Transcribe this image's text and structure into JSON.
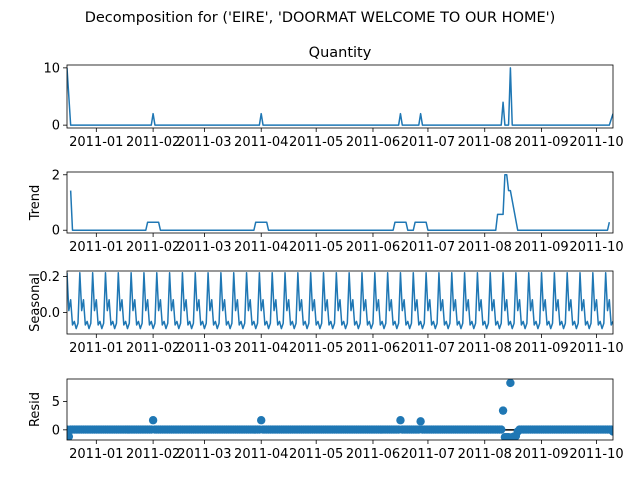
{
  "suptitle": "Decomposition for ('EIRE', 'DOORMAT WELCOME TO OUR HOME')",
  "x_tick_labels": [
    "2011-01",
    "2011-02",
    "2011-03",
    "2011-04",
    "2011-05",
    "2011-06",
    "2011-07",
    "2011-08",
    "2011-09",
    "2011-10"
  ],
  "line_color": "#1f77b4",
  "chart_data": [
    {
      "type": "line",
      "title": "Quantity",
      "ylabel": "",
      "xlim": [
        "2010-12-16",
        "2011-10-10"
      ],
      "ylim": [
        -0.5,
        10.5
      ],
      "yticks": [
        0,
        10
      ],
      "ytick_labels": [
        "0",
        "10"
      ],
      "series": [
        {
          "x": [
            "2010-12-16",
            "2010-12-18",
            "2011-01-31",
            "2011-02-01",
            "2011-02-02",
            "2011-03-31",
            "2011-04-01",
            "2011-04-02",
            "2011-06-15",
            "2011-06-16",
            "2011-06-17",
            "2011-06-26",
            "2011-06-27",
            "2011-06-28",
            "2011-08-10",
            "2011-08-11",
            "2011-08-12",
            "2011-08-14",
            "2011-08-15",
            "2011-08-16",
            "2011-10-08",
            "2011-10-10"
          ],
          "values": [
            10,
            0,
            0,
            2,
            0,
            0,
            2,
            0,
            0,
            2,
            0,
            0,
            2,
            0,
            0,
            4,
            0,
            0,
            10,
            0,
            0,
            2
          ]
        }
      ]
    },
    {
      "type": "line",
      "title": "",
      "ylabel": "Trend",
      "xlim": [
        "2010-12-16",
        "2011-10-10"
      ],
      "ylim": [
        -0.1,
        2.1
      ],
      "yticks": [
        0,
        2
      ],
      "ytick_labels": [
        "0",
        "2"
      ],
      "series": [
        {
          "x": [
            "2010-12-18",
            "2010-12-19",
            "2011-01-28",
            "2011-01-29",
            "2011-02-04",
            "2011-02-05",
            "2011-03-28",
            "2011-03-29",
            "2011-04-04",
            "2011-04-05",
            "2011-06-12",
            "2011-06-13",
            "2011-06-19",
            "2011-06-20",
            "2011-06-23",
            "2011-06-24",
            "2011-06-30",
            "2011-07-01",
            "2011-08-07",
            "2011-08-08",
            "2011-08-11",
            "2011-08-12",
            "2011-08-13",
            "2011-08-14",
            "2011-08-15",
            "2011-08-19",
            "2011-10-07",
            "2011-10-08"
          ],
          "values": [
            1.43,
            0,
            0,
            0.29,
            0.29,
            0,
            0,
            0.29,
            0.29,
            0,
            0,
            0.29,
            0.29,
            0,
            0,
            0.29,
            0.29,
            0,
            0,
            0.57,
            0.57,
            2.0,
            2.0,
            1.43,
            1.43,
            0,
            0,
            0.29
          ]
        }
      ]
    },
    {
      "type": "line",
      "title": "",
      "ylabel": "Seasonal",
      "xlim": [
        "2010-12-16",
        "2011-10-10"
      ],
      "ylim": [
        -0.12,
        0.23
      ],
      "yticks": [
        0.0,
        0.2
      ],
      "ytick_labels": [
        "0.0",
        "0.2"
      ],
      "period": 7,
      "start": "2010-12-16",
      "end": "2011-10-10",
      "pattern": [
        0.22,
        0.01,
        0.07,
        -0.07,
        -0.05,
        -0.09,
        -0.06
      ]
    },
    {
      "type": "scatter",
      "title": "",
      "ylabel": "Resid",
      "xlim": [
        "2010-12-16",
        "2011-10-10"
      ],
      "ylim": [
        -1.8,
        9.0
      ],
      "yticks": [
        0,
        5
      ],
      "ytick_labels": [
        "0",
        "5"
      ],
      "baseline": 0,
      "start": "2010-12-16",
      "end": "2011-10-10",
      "default_value": 0.05,
      "overrides": [
        {
          "x": "2010-12-17",
          "y": -1.2
        },
        {
          "x": "2011-02-01",
          "y": 1.7
        },
        {
          "x": "2011-04-01",
          "y": 1.7
        },
        {
          "x": "2011-06-16",
          "y": 1.7
        },
        {
          "x": "2011-06-27",
          "y": 1.5
        },
        {
          "x": "2011-08-11",
          "y": 3.4
        },
        {
          "x": "2011-08-12",
          "y": -1.3
        },
        {
          "x": "2011-08-13",
          "y": -1.3
        },
        {
          "x": "2011-08-14",
          "y": -1.3
        },
        {
          "x": "2011-08-15",
          "y": 8.3
        },
        {
          "x": "2011-08-16",
          "y": -1.3
        },
        {
          "x": "2011-08-17",
          "y": -1.2
        },
        {
          "x": "2011-08-18",
          "y": -1.1
        },
        {
          "x": "2011-08-19",
          "y": -0.3
        },
        {
          "x": "2011-10-10",
          "y": -0.3
        }
      ]
    }
  ]
}
